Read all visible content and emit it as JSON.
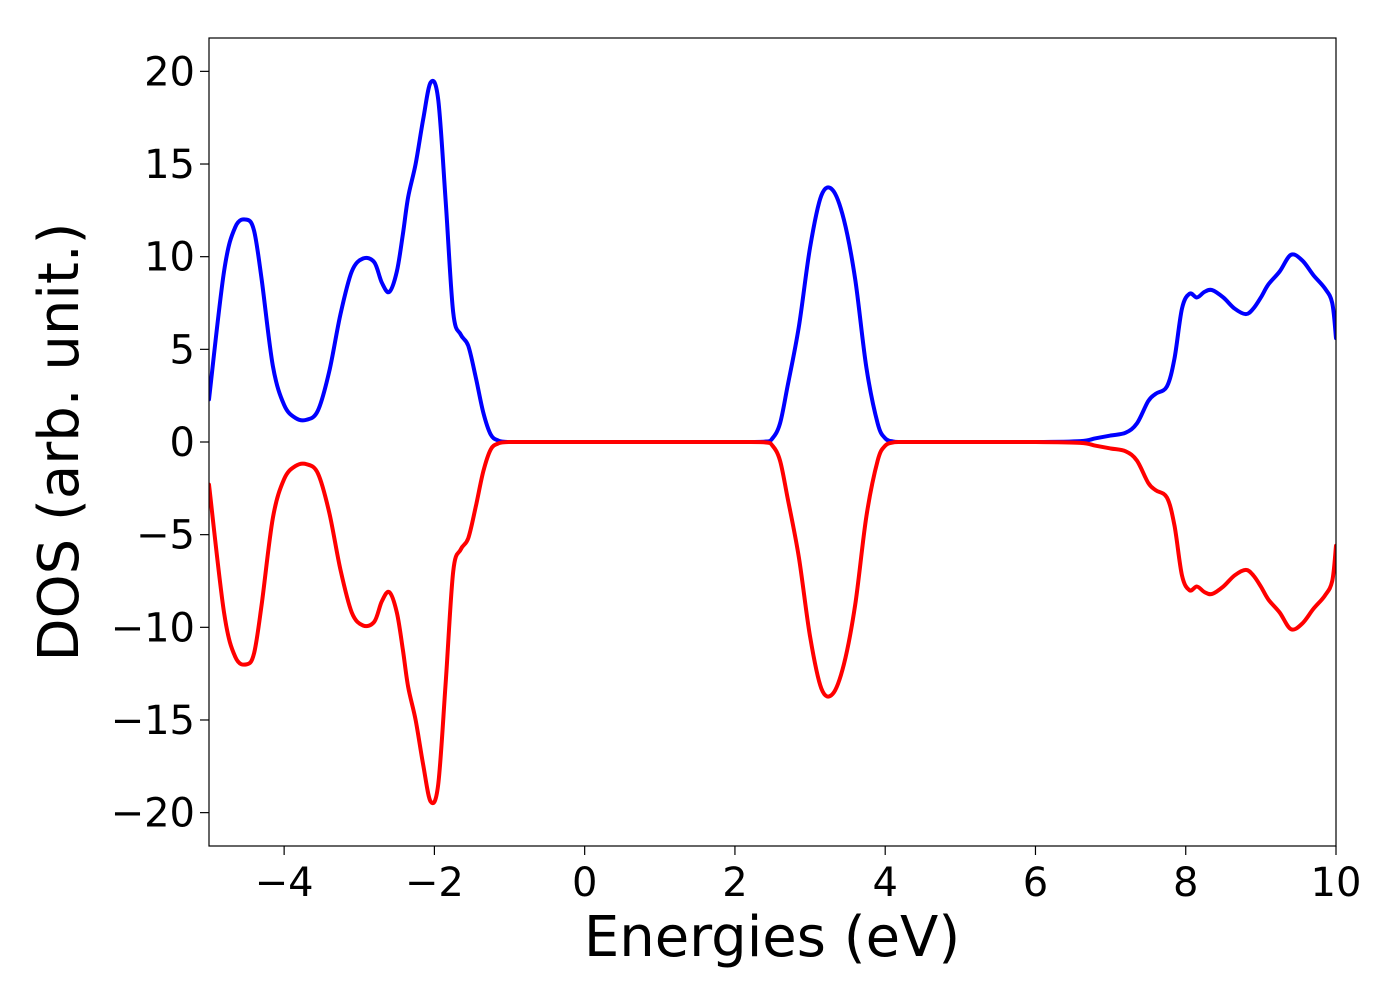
{
  "chart_data": {
    "type": "line",
    "xlabel": "Energies (eV)",
    "ylabel": "DOS (arb. unit.)",
    "xlim": [
      -5,
      10
    ],
    "ylim": [
      -21.8,
      21.8
    ],
    "xticks": [
      -4,
      -2,
      0,
      2,
      4,
      6,
      8,
      10
    ],
    "yticks": [
      -20,
      -15,
      -10,
      -5,
      0,
      5,
      10,
      15,
      20
    ],
    "grid": false,
    "legend": "none",
    "series": [
      {
        "color": "#0000ff",
        "x": [
          -5.0,
          -4.8,
          -4.65,
          -4.5,
          -4.4,
          -4.3,
          -4.15,
          -4.0,
          -3.85,
          -3.7,
          -3.55,
          -3.4,
          -3.25,
          -3.1,
          -2.95,
          -2.8,
          -2.7,
          -2.6,
          -2.5,
          -2.42,
          -2.35,
          -2.25,
          -2.15,
          -2.05,
          -1.95,
          -1.85,
          -1.75,
          -1.65,
          -1.55,
          -1.45,
          -1.35,
          -1.25,
          -1.15,
          -1.05,
          -0.95,
          -0.85,
          -0.75,
          -0.65,
          -0.55,
          -0.4,
          0.0,
          1.0,
          2.0,
          2.4,
          2.5,
          2.6,
          2.7,
          2.85,
          3.0,
          3.15,
          3.3,
          3.45,
          3.6,
          3.75,
          3.9,
          4.0,
          4.1,
          4.2,
          4.3,
          4.5,
          5.0,
          6.0,
          6.6,
          6.8,
          7.0,
          7.2,
          7.35,
          7.5,
          7.6,
          7.75,
          7.85,
          7.95,
          8.05,
          8.15,
          8.25,
          8.35,
          8.5,
          8.65,
          8.8,
          8.9,
          9.0,
          9.1,
          9.25,
          9.4,
          9.55,
          9.7,
          9.85,
          9.95,
          10.0
        ],
        "y": [
          2.3,
          9.2,
          11.6,
          12.0,
          11.4,
          8.8,
          4.1,
          2.0,
          1.3,
          1.2,
          1.7,
          3.8,
          6.9,
          9.2,
          9.9,
          9.7,
          8.6,
          8.1,
          9.2,
          11.2,
          13.2,
          15.0,
          17.4,
          19.4,
          18.5,
          13.0,
          7.0,
          5.8,
          5.2,
          3.5,
          1.6,
          0.4,
          0.08,
          0.01,
          0.0,
          0.0,
          0.0,
          0.0,
          0.0,
          0.0,
          0.0,
          0.0,
          0.0,
          0.02,
          0.2,
          1.0,
          3.0,
          6.2,
          10.5,
          13.3,
          13.6,
          12.0,
          8.8,
          4.0,
          1.0,
          0.2,
          0.03,
          0.0,
          0.0,
          0.0,
          0.0,
          0.0,
          0.05,
          0.2,
          0.35,
          0.5,
          1.0,
          2.2,
          2.6,
          3.0,
          4.5,
          7.2,
          8.0,
          7.8,
          8.1,
          8.2,
          7.8,
          7.2,
          6.9,
          7.2,
          7.8,
          8.5,
          9.2,
          10.1,
          9.8,
          9.0,
          8.3,
          7.5,
          5.6
        ]
      },
      {
        "color": "#ff0000",
        "x": [
          -5.0,
          -4.8,
          -4.65,
          -4.5,
          -4.4,
          -4.3,
          -4.15,
          -4.0,
          -3.85,
          -3.7,
          -3.55,
          -3.4,
          -3.25,
          -3.1,
          -2.95,
          -2.8,
          -2.7,
          -2.6,
          -2.5,
          -2.42,
          -2.35,
          -2.25,
          -2.15,
          -2.05,
          -1.95,
          -1.85,
          -1.75,
          -1.65,
          -1.55,
          -1.45,
          -1.35,
          -1.25,
          -1.15,
          -1.05,
          -0.95,
          -0.85,
          -0.75,
          -0.65,
          -0.55,
          -0.4,
          0.0,
          1.0,
          2.0,
          2.4,
          2.5,
          2.6,
          2.7,
          2.85,
          3.0,
          3.15,
          3.3,
          3.45,
          3.6,
          3.75,
          3.9,
          4.0,
          4.1,
          4.2,
          4.3,
          4.5,
          5.0,
          6.0,
          6.6,
          6.8,
          7.0,
          7.2,
          7.35,
          7.5,
          7.6,
          7.75,
          7.85,
          7.95,
          8.05,
          8.15,
          8.25,
          8.35,
          8.5,
          8.65,
          8.8,
          8.9,
          9.0,
          9.1,
          9.25,
          9.4,
          9.55,
          9.7,
          9.85,
          9.95,
          10.0
        ],
        "y": [
          -2.3,
          -9.2,
          -11.6,
          -12.0,
          -11.4,
          -8.8,
          -4.1,
          -2.0,
          -1.3,
          -1.2,
          -1.7,
          -3.8,
          -6.9,
          -9.2,
          -9.9,
          -9.7,
          -8.6,
          -8.1,
          -9.2,
          -11.2,
          -13.2,
          -15.0,
          -17.4,
          -19.4,
          -18.5,
          -13.0,
          -7.0,
          -5.8,
          -5.2,
          -3.5,
          -1.6,
          -0.4,
          -0.08,
          -0.01,
          0.0,
          0.0,
          0.0,
          0.0,
          0.0,
          0.0,
          0.0,
          0.0,
          0.0,
          -0.02,
          -0.2,
          -1.0,
          -3.0,
          -6.2,
          -10.5,
          -13.3,
          -13.6,
          -12.0,
          -8.8,
          -4.0,
          -1.0,
          -0.2,
          -0.03,
          0.0,
          0.0,
          0.0,
          0.0,
          0.0,
          -0.05,
          -0.2,
          -0.35,
          -0.5,
          -1.0,
          -2.2,
          -2.6,
          -3.0,
          -4.5,
          -7.2,
          -8.0,
          -7.8,
          -8.1,
          -8.2,
          -7.8,
          -7.2,
          -6.9,
          -7.2,
          -7.8,
          -8.5,
          -9.2,
          -10.1,
          -9.8,
          -9.0,
          -8.3,
          -7.5,
          -5.6
        ]
      }
    ]
  }
}
